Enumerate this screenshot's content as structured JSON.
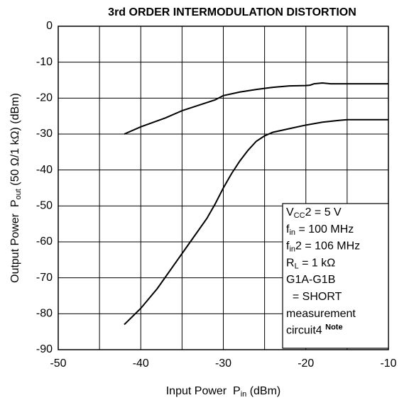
{
  "chart_data": {
    "type": "line",
    "title": "3rd ORDER INTERMODULATION DISTORTION",
    "x_label": [
      {
        "text": "Input Power  P"
      },
      {
        "text": "in",
        "style": "sub"
      },
      {
        "text": " (dBm)"
      }
    ],
    "y_label": [
      {
        "text": "Output Power  P"
      },
      {
        "text": "out",
        "style": "sub"
      },
      {
        "text": " (50 Ω/1 kΩ) (dBm)"
      }
    ],
    "xlim": [
      -50,
      -10
    ],
    "ylim": [
      -90,
      0
    ],
    "xticks": [
      -50,
      -40,
      -30,
      -20,
      -10
    ],
    "xminor_grid": [
      -45,
      -35,
      -25,
      -15
    ],
    "yticks": [
      0,
      -10,
      -20,
      -30,
      -40,
      -50,
      -60,
      -70,
      -80,
      -90
    ],
    "grid": true,
    "series": [
      {
        "color": "#000000",
        "x": [
          -42,
          -40,
          -37,
          -35,
          -33,
          -31,
          -30,
          -28,
          -26,
          -24,
          -22,
          -20,
          -19.5,
          -19,
          -18,
          -17,
          -15,
          -10
        ],
        "values": [
          -30,
          -28,
          -25.5,
          -23.5,
          -22,
          -20.5,
          -19.3,
          -18.3,
          -17.6,
          -17,
          -16.6,
          -16.5,
          -16.4,
          -16,
          -15.8,
          -16,
          -16,
          -16
        ]
      },
      {
        "color": "#000000",
        "x": [
          -42,
          -40,
          -38,
          -36,
          -34,
          -32,
          -31,
          -30,
          -29,
          -28,
          -27,
          -26,
          -25,
          -24,
          -22,
          -20,
          -18,
          -16,
          -15,
          -10
        ],
        "values": [
          -83,
          -78.5,
          -73,
          -66.5,
          -60,
          -53.5,
          -49.5,
          -45,
          -41,
          -37.5,
          -34.5,
          -32,
          -30.5,
          -29.5,
          -28.5,
          -27.5,
          -26.7,
          -26.2,
          -26,
          -26
        ]
      }
    ],
    "annotation": [
      [
        {
          "text": "V"
        },
        {
          "text": "CC",
          "style": "sub"
        },
        {
          "text": "2 = 5 V"
        }
      ],
      [
        {
          "text": "f"
        },
        {
          "text": "in",
          "style": "sub"
        },
        {
          "text": " = 100 MHz"
        }
      ],
      [
        {
          "text": "f"
        },
        {
          "text": "in",
          "style": "sub"
        },
        {
          "text": "2 = 106 MHz"
        }
      ],
      [
        {
          "text": "R"
        },
        {
          "text": "L",
          "style": "sub"
        },
        {
          "text": " = 1 kΩ"
        }
      ],
      [
        {
          "text": "G1A-G1B"
        }
      ],
      [
        {
          "text": "  = SHORT"
        }
      ],
      [
        {
          "text": "measurement"
        }
      ],
      [
        {
          "text": "circuit4 "
        },
        {
          "text": "Note",
          "style": "sup"
        }
      ]
    ]
  }
}
